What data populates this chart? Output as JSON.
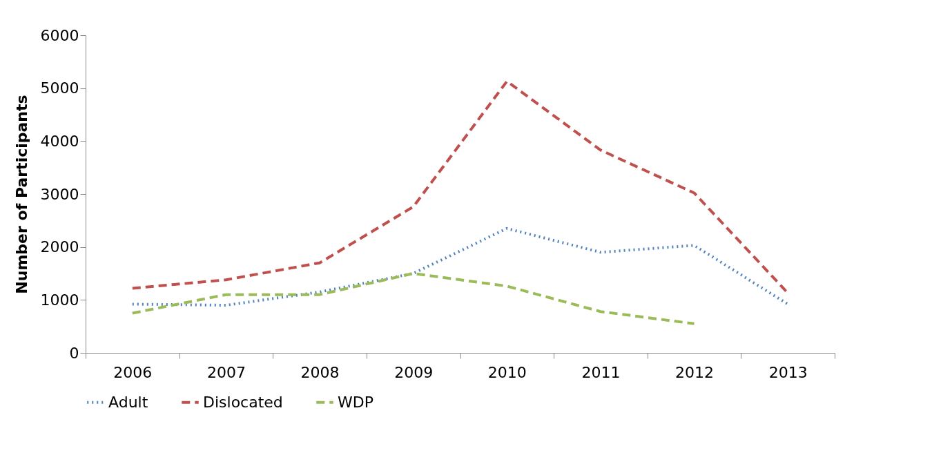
{
  "chart_data": {
    "type": "line",
    "ylabel": "Number of Participants",
    "categories": [
      "2006",
      "2007",
      "2008",
      "2009",
      "2010",
      "2011",
      "2012",
      "2013"
    ],
    "series": [
      {
        "name": "Adult",
        "color": "#4f81bd",
        "line_style": "dotted",
        "values": [
          920,
          900,
          1150,
          1500,
          2350,
          1900,
          2030,
          920
        ]
      },
      {
        "name": "Dislocated",
        "color": "#c0504d",
        "line_style": "dashed",
        "values": [
          1220,
          1380,
          1700,
          2760,
          5130,
          3830,
          3020,
          1130
        ]
      },
      {
        "name": "WDP",
        "color": "#9bbb59",
        "line_style": "dashed",
        "values": [
          750,
          1100,
          1100,
          1500,
          1260,
          780,
          550,
          null
        ]
      }
    ],
    "ylim": [
      0,
      6000
    ],
    "yticks": [
      0,
      1000,
      2000,
      3000,
      4000,
      5000,
      6000
    ],
    "grid": false,
    "legend": "bottom",
    "marker": "none"
  }
}
